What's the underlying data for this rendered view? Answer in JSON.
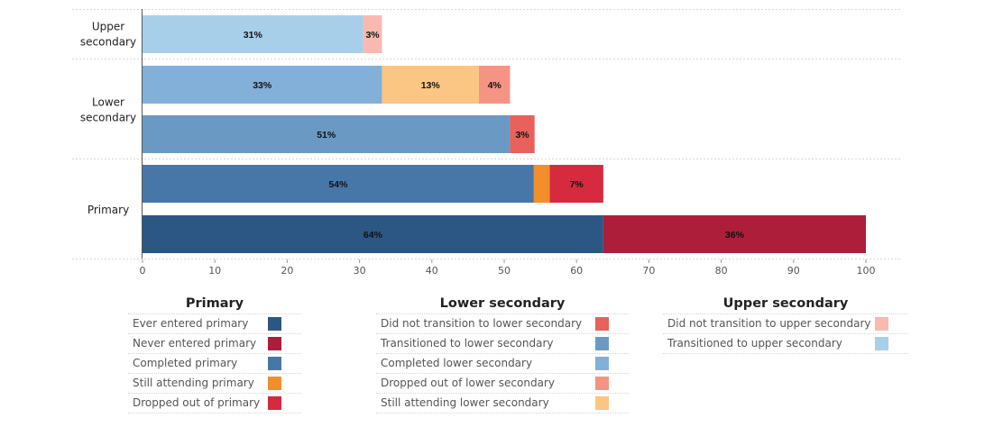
{
  "chart_data": {
    "type": "bar",
    "orientation": "horizontal",
    "stacked": true,
    "xlim": [
      0,
      100
    ],
    "xticks": [
      "0",
      "10",
      "20",
      "30",
      "40",
      "50",
      "60",
      "70",
      "80",
      "90",
      "100"
    ],
    "groups": [
      {
        "label": "Upper\nsecondary",
        "bars": 1
      },
      {
        "label": "Lower\nsecondary",
        "bars": 2
      },
      {
        "label": "Primary",
        "bars": 2
      }
    ],
    "bars": [
      {
        "group": "Upper secondary",
        "segments": [
          {
            "series": "Transitioned to upper secondary",
            "value": 30.5,
            "label": "31%"
          },
          {
            "series": "Did not transition to upper secondary",
            "value": 2.6,
            "label": "3%"
          }
        ]
      },
      {
        "group": "Lower secondary",
        "segments": [
          {
            "series": "Completed lower secondary",
            "value": 33.1,
            "label": "33%"
          },
          {
            "series": "Still attending lower secondary",
            "value": 13.4,
            "label": "13%"
          },
          {
            "series": "Dropped out of lower secondary",
            "value": 4.3,
            "label": "4%"
          }
        ]
      },
      {
        "group": "Lower secondary",
        "segments": [
          {
            "series": "Transitioned to lower secondary",
            "value": 50.8,
            "label": "51%"
          },
          {
            "series": "Did not transition to lower secondary",
            "value": 3.4,
            "label": "3%"
          }
        ]
      },
      {
        "group": "Primary",
        "segments": [
          {
            "series": "Completed primary",
            "value": 54.1,
            "label": "54%"
          },
          {
            "series": "Still attending primary",
            "value": 2.2,
            "label": ""
          },
          {
            "series": "Dropped out of primary",
            "value": 7.4,
            "label": "7%"
          }
        ]
      },
      {
        "group": "Primary",
        "segments": [
          {
            "series": "Ever entered primary",
            "value": 63.7,
            "label": "64%"
          },
          {
            "series": "Never entered primary",
            "value": 36.3,
            "label": "36%"
          }
        ]
      }
    ]
  },
  "legends": [
    {
      "title": "Primary",
      "items": [
        {
          "label": "Ever entered primary",
          "color": "#2c5784"
        },
        {
          "label": "Never entered primary",
          "color": "#ad1e3b"
        },
        {
          "label": "Completed primary",
          "color": "#4777a8"
        },
        {
          "label": "Still attending primary",
          "color": "#f28e2b"
        },
        {
          "label": "Dropped out of primary",
          "color": "#d62a3f"
        }
      ]
    },
    {
      "title": "Lower secondary",
      "items": [
        {
          "label": "Did not transition to lower secondary",
          "color": "#e8615a"
        },
        {
          "label": "Transitioned to lower secondary",
          "color": "#6a9ac4"
        },
        {
          "label": "Completed lower secondary",
          "color": "#82b0d8"
        },
        {
          "label": "Dropped out of lower secondary",
          "color": "#f69483"
        },
        {
          "label": "Still attending lower secondary",
          "color": "#fbc583"
        }
      ]
    },
    {
      "title": "Upper secondary",
      "items": [
        {
          "label": "Did not transition to upper secondary",
          "color": "#f8b9b1"
        },
        {
          "label": "Transitioned to upper secondary",
          "color": "#a8cfea"
        }
      ]
    }
  ]
}
